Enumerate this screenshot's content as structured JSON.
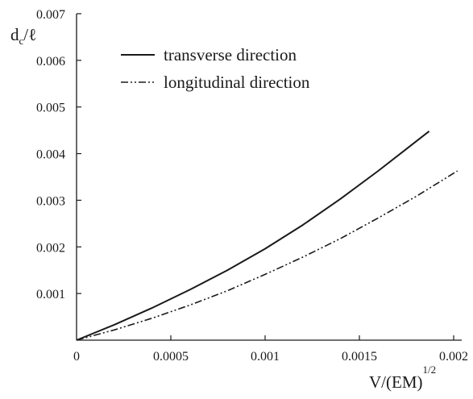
{
  "chart_data": {
    "type": "line",
    "ylabel": {
      "main": "d",
      "sub": "c",
      "rest": "/ℓ"
    },
    "xlabel": {
      "main": "V/(EM)",
      "sup": "1/2"
    },
    "xlim": [
      0,
      0.002
    ],
    "ylim": [
      0,
      0.007
    ],
    "x_ticks": [
      {
        "value": 0,
        "label": "0"
      },
      {
        "value": 0.0005,
        "label": "0.0005"
      },
      {
        "value": 0.001,
        "label": "0.001"
      },
      {
        "value": 0.0015,
        "label": "0.0015"
      },
      {
        "value": 0.002,
        "label": "0.002"
      }
    ],
    "y_ticks": [
      {
        "value": 0.001,
        "label": "0.001"
      },
      {
        "value": 0.002,
        "label": "0.002"
      },
      {
        "value": 0.003,
        "label": "0.003"
      },
      {
        "value": 0.004,
        "label": "0.004"
      },
      {
        "value": 0.005,
        "label": "0.005"
      },
      {
        "value": 0.006,
        "label": "0.006"
      },
      {
        "value": 0.007,
        "label": "0.007"
      }
    ],
    "grid": false,
    "legend_position": "top-left",
    "series": [
      {
        "name": "transverse direction",
        "style": "solid",
        "color": "#1a1a1a",
        "x": [
          0,
          0.0002,
          0.0004,
          0.0006,
          0.0008,
          0.001,
          0.0012,
          0.0014,
          0.0016,
          0.00187
        ],
        "y": [
          0,
          0.00033,
          0.00069,
          0.00108,
          0.0015,
          0.00196,
          0.00247,
          0.00303,
          0.00363,
          0.00448
        ]
      },
      {
        "name": "longitudinal direction",
        "style": "dash-dot-dot",
        "color": "#1a1a1a",
        "x": [
          0,
          0.0002,
          0.0004,
          0.0006,
          0.0008,
          0.001,
          0.0012,
          0.0014,
          0.0016,
          0.0018,
          0.00202
        ],
        "y": [
          0,
          0.00022,
          0.00047,
          0.00075,
          0.00106,
          0.00141,
          0.00178,
          0.00218,
          0.00262,
          0.00308,
          0.00363
        ]
      }
    ]
  }
}
